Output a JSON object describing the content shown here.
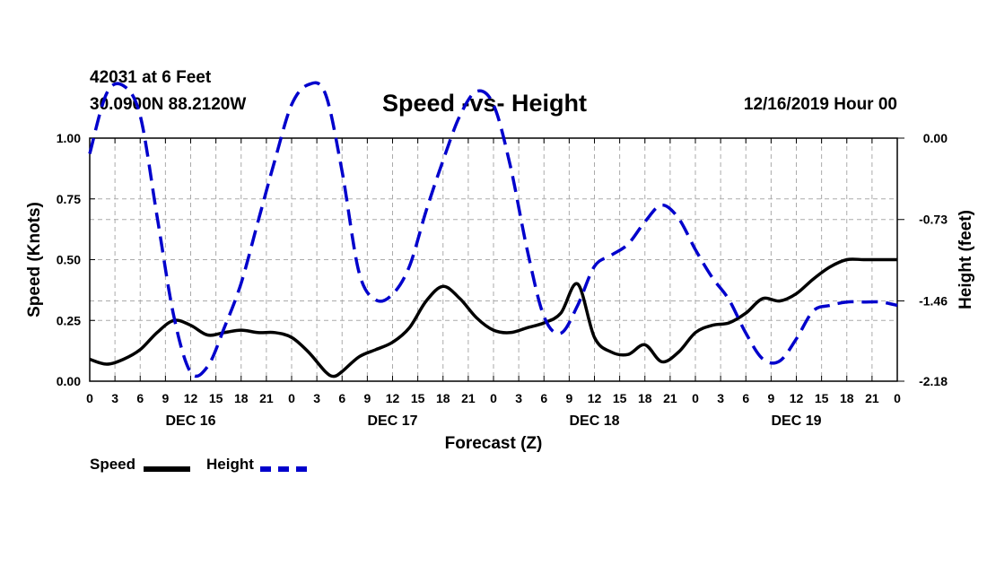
{
  "header": {
    "station": "42031 at 6 Feet",
    "coords": "30.0900N 88.2120W",
    "title": "Speed -vs- Height",
    "timestamp": "12/16/2019 Hour 00"
  },
  "legend": {
    "speed_label": "Speed",
    "height_label": "Height"
  },
  "colors": {
    "speed": "#000000",
    "height": "#0000cc",
    "grid": "#aaaaaa"
  },
  "chart_data": {
    "type": "line",
    "title": "Speed -vs- Height",
    "xlabel": "Forecast (Z)",
    "ylabel": "Speed (Knots)",
    "y2label": "Height (feet)",
    "x_range": [
      0,
      96
    ],
    "ylim": [
      0,
      1
    ],
    "y2lim": [
      -2.18,
      0.0
    ],
    "y_ticks": [
      "0.00",
      "0.25",
      "0.50",
      "0.75",
      "1.00"
    ],
    "y2_ticks": [
      "0.00",
      "-0.73",
      "-1.46",
      "-2.18"
    ],
    "x_tick_labels": [
      "0",
      "3",
      "6",
      "9",
      "12",
      "15",
      "18",
      "21",
      "0",
      "3",
      "6",
      "9",
      "12",
      "15",
      "18",
      "21",
      "0",
      "3",
      "6",
      "9",
      "12",
      "15",
      "18",
      "21",
      "0",
      "3",
      "6",
      "9",
      "12",
      "15",
      "18",
      "21",
      "0"
    ],
    "day_labels": [
      "DEC 16",
      "DEC 17",
      "DEC 18",
      "DEC 19"
    ],
    "grid": true,
    "series": [
      {
        "name": "Speed",
        "axis": "left",
        "style": "solid",
        "x": [
          0,
          2,
          4,
          6,
          8,
          10,
          12,
          14,
          16,
          18,
          20,
          22,
          24,
          26,
          28,
          29,
          30,
          32,
          34,
          36,
          38,
          40,
          42,
          44,
          46,
          48,
          50,
          52,
          54,
          56,
          58,
          60,
          62,
          64,
          66,
          68,
          70,
          72,
          74,
          76,
          78,
          80,
          82,
          84,
          86,
          88,
          90,
          92,
          94,
          96
        ],
        "values": [
          0.09,
          0.07,
          0.09,
          0.13,
          0.2,
          0.25,
          0.23,
          0.19,
          0.2,
          0.21,
          0.2,
          0.2,
          0.18,
          0.12,
          0.04,
          0.02,
          0.04,
          0.1,
          0.13,
          0.16,
          0.22,
          0.33,
          0.39,
          0.34,
          0.26,
          0.21,
          0.2,
          0.22,
          0.24,
          0.28,
          0.4,
          0.18,
          0.12,
          0.11,
          0.15,
          0.08,
          0.12,
          0.2,
          0.23,
          0.24,
          0.28,
          0.34,
          0.33,
          0.36,
          0.42,
          0.47,
          0.5,
          0.5,
          0.5,
          0.5
        ]
      },
      {
        "name": "Height",
        "axis": "right",
        "style": "dashed",
        "x": [
          0,
          2,
          4,
          6,
          8,
          10,
          12,
          14,
          16,
          18,
          20,
          22,
          24,
          26,
          28,
          30,
          32,
          34,
          36,
          38,
          40,
          42,
          44,
          46,
          48,
          50,
          52,
          54,
          56,
          58,
          60,
          62,
          64,
          66,
          68,
          70,
          72,
          74,
          76,
          78,
          80,
          82,
          84,
          86,
          88,
          90,
          92,
          94,
          96
        ],
        "values": [
          -0.14,
          0.4,
          0.47,
          0.2,
          -0.7,
          -1.6,
          -2.1,
          -2.05,
          -1.7,
          -1.3,
          -0.75,
          -0.2,
          0.3,
          0.48,
          0.4,
          -0.3,
          -1.2,
          -1.45,
          -1.4,
          -1.15,
          -0.65,
          -0.2,
          0.2,
          0.42,
          0.3,
          -0.25,
          -1.0,
          -1.6,
          -1.75,
          -1.5,
          -1.15,
          -1.05,
          -0.95,
          -0.75,
          -0.6,
          -0.72,
          -1.0,
          -1.25,
          -1.45,
          -1.75,
          -1.98,
          -2.0,
          -1.8,
          -1.55,
          -1.5,
          -1.47,
          -1.47,
          -1.47,
          -1.5
        ]
      }
    ]
  }
}
